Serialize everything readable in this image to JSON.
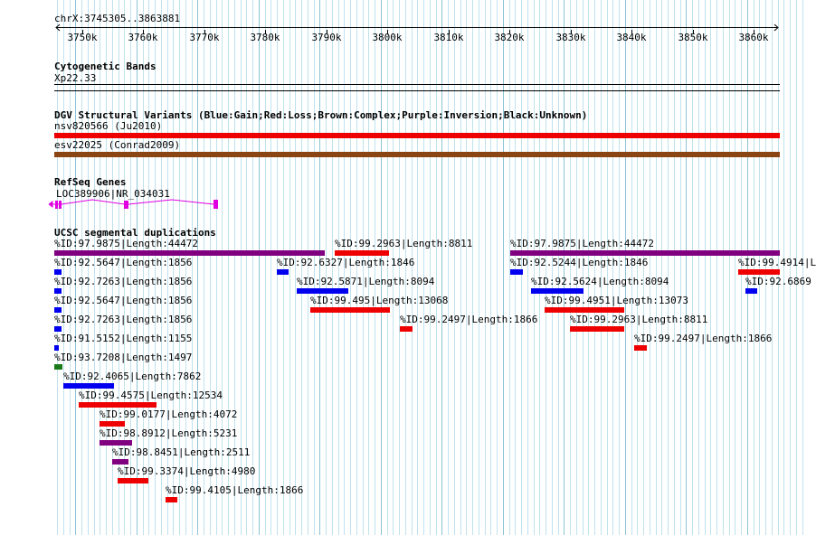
{
  "colors": {
    "blue": "#0000ee",
    "red": "#ee0000",
    "brown": "#8b4513",
    "purple": "#800080",
    "green": "#1a7a1a",
    "magenta": "#e000e0",
    "grid": "#bfe2ec"
  },
  "position": "chrX:3745305..3863881",
  "ruler_ticks": [
    "3750k",
    "3760k",
    "3770k",
    "3780k",
    "3790k",
    "3800k",
    "3810k",
    "3820k",
    "3830k",
    "3840k",
    "3850k",
    "3860k"
  ],
  "cytobands": {
    "title": "Cytogenetic Bands",
    "band": "Xp22.33"
  },
  "dgv": {
    "title": "DGV Structural Variants (Blue:Gain;Red:Loss;Brown:Complex;Purple:Inversion;Black:Unknown)",
    "variants": [
      {
        "label": "nsv820566 (Ju2010)",
        "color": "red"
      },
      {
        "label": "esv22025 (Conrad2009)",
        "color": "brown"
      }
    ]
  },
  "refseq": {
    "title": "RefSeq Genes",
    "gene": "LOC389906|NR_034031"
  },
  "segdup": {
    "title": "UCSC segmental duplications",
    "features": [
      {
        "label": "%ID:97.9875|Length:44472",
        "color": "purple"
      },
      {
        "label": "%ID:99.2963|Length:8811",
        "color": "red"
      },
      {
        "label": "%ID:97.9875|Length:44472",
        "color": "purple"
      },
      {
        "label": "%ID:92.5647|Length:1856",
        "color": "blue"
      },
      {
        "label": "%ID:92.6327|Length:1846",
        "color": "blue"
      },
      {
        "label": "%ID:92.5244|Length:1846",
        "color": "blue"
      },
      {
        "label": "%ID:99.4914|L",
        "color": "red"
      },
      {
        "label": "%ID:92.7263|Length:1856",
        "color": "blue"
      },
      {
        "label": "%ID:92.5871|Length:8094",
        "color": "blue"
      },
      {
        "label": "%ID:92.5624|Length:8094",
        "color": "blue"
      },
      {
        "label": "%ID:92.6869",
        "color": "blue"
      },
      {
        "label": "%ID:92.5647|Length:1856",
        "color": "blue"
      },
      {
        "label": "%ID:99.495|Length:13068",
        "color": "red"
      },
      {
        "label": "%ID:99.4951|Length:13073",
        "color": "red"
      },
      {
        "label": "%ID:92.7263|Length:1856",
        "color": "blue"
      },
      {
        "label": "%ID:99.2497|Length:1866",
        "color": "red"
      },
      {
        "label": "%ID:99.2963|Length:8811",
        "color": "red"
      },
      {
        "label": "%ID:91.5152|Length:1155",
        "color": "blue"
      },
      {
        "label": "%ID:99.2497|Length:1866",
        "color": "red"
      },
      {
        "label": "%ID:93.7208|Length:1497",
        "color": "green"
      },
      {
        "label": "%ID:92.4065|Length:7862",
        "color": "blue"
      },
      {
        "label": "%ID:99.4575|Length:12534",
        "color": "red"
      },
      {
        "label": "%ID:99.0177|Length:4072",
        "color": "red"
      },
      {
        "label": "%ID:98.8912|Length:5231",
        "color": "purple"
      },
      {
        "label": "%ID:98.8451|Length:2511",
        "color": "purple"
      },
      {
        "label": "%ID:99.3374|Length:4980",
        "color": "red"
      },
      {
        "label": "%ID:99.4105|Length:1866",
        "color": "red"
      }
    ]
  }
}
